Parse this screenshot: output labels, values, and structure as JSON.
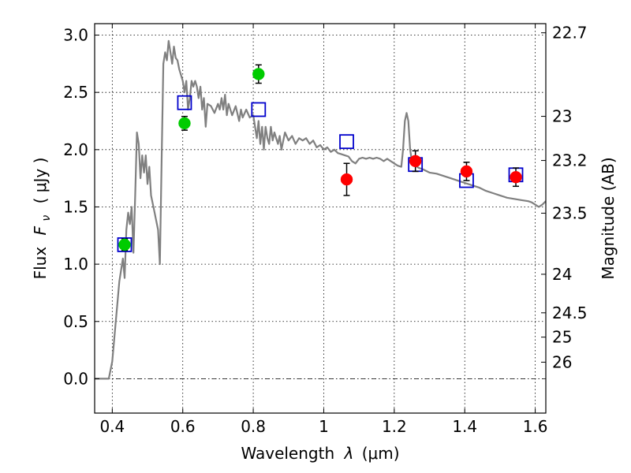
{
  "chart_data": {
    "type": "scatter",
    "xlabel_prefix": "Wavelength",
    "xlabel_symbol": "λ",
    "xlabel_unit": "(μm)",
    "ylabel_prefix": "Flux",
    "ylabel_symbol": "F",
    "ylabel_symbol_sub": "ν",
    "ylabel_unit": "( μJy )",
    "y2label": "Magnitude (AB)",
    "xlim": [
      0.35,
      1.63
    ],
    "ylim": [
      -0.3,
      3.1
    ],
    "x_ticks": [
      {
        "value": 0.4,
        "label": "0.4"
      },
      {
        "value": 0.6,
        "label": "0.6"
      },
      {
        "value": 0.8,
        "label": "0.8"
      },
      {
        "value": 1.0,
        "label": "1"
      },
      {
        "value": 1.2,
        "label": "1.2"
      },
      {
        "value": 1.4,
        "label": "1.4"
      },
      {
        "value": 1.6,
        "label": "1.6"
      }
    ],
    "y_ticks": [
      {
        "value": 0.0,
        "label": "0.0"
      },
      {
        "value": 0.5,
        "label": "0.5"
      },
      {
        "value": 1.0,
        "label": "1.0"
      },
      {
        "value": 1.5,
        "label": "1.5"
      },
      {
        "value": 2.0,
        "label": "2.0"
      },
      {
        "value": 2.5,
        "label": "2.5"
      },
      {
        "value": 3.0,
        "label": "3.0"
      }
    ],
    "y2_ticks": [
      {
        "magnitude": 22.7,
        "label": "22.7"
      },
      {
        "magnitude": 23.0,
        "label": "23"
      },
      {
        "magnitude": 23.2,
        "label": "23.2"
      },
      {
        "magnitude": 23.5,
        "label": "23.5"
      },
      {
        "magnitude": 24.0,
        "label": "24"
      },
      {
        "magnitude": 24.5,
        "label": "24.5"
      },
      {
        "magnitude": 25.0,
        "label": "25"
      },
      {
        "magnitude": 26.0,
        "label": "26"
      }
    ],
    "grid": true,
    "zero_line": true,
    "series": [
      {
        "kind": "line",
        "color": "#808080",
        "points": [
          [
            0.35,
            0.0
          ],
          [
            0.39,
            0.0
          ],
          [
            0.4,
            0.15
          ],
          [
            0.41,
            0.5
          ],
          [
            0.42,
            0.85
          ],
          [
            0.43,
            1.05
          ],
          [
            0.435,
            0.88
          ],
          [
            0.44,
            1.3
          ],
          [
            0.445,
            1.45
          ],
          [
            0.45,
            1.35
          ],
          [
            0.455,
            1.5
          ],
          [
            0.46,
            1.1
          ],
          [
            0.465,
            1.6
          ],
          [
            0.47,
            2.15
          ],
          [
            0.475,
            2.05
          ],
          [
            0.48,
            1.75
          ],
          [
            0.485,
            1.95
          ],
          [
            0.49,
            1.8
          ],
          [
            0.495,
            1.95
          ],
          [
            0.5,
            1.7
          ],
          [
            0.505,
            1.85
          ],
          [
            0.51,
            1.6
          ],
          [
            0.52,
            1.45
          ],
          [
            0.53,
            1.3
          ],
          [
            0.535,
            1.0
          ],
          [
            0.54,
            1.9
          ],
          [
            0.545,
            2.75
          ],
          [
            0.55,
            2.85
          ],
          [
            0.555,
            2.78
          ],
          [
            0.56,
            2.95
          ],
          [
            0.565,
            2.85
          ],
          [
            0.57,
            2.75
          ],
          [
            0.575,
            2.9
          ],
          [
            0.58,
            2.8
          ],
          [
            0.585,
            2.78
          ],
          [
            0.59,
            2.7
          ],
          [
            0.6,
            2.6
          ],
          [
            0.605,
            2.5
          ],
          [
            0.61,
            2.6
          ],
          [
            0.615,
            2.35
          ],
          [
            0.62,
            2.45
          ],
          [
            0.625,
            2.6
          ],
          [
            0.63,
            2.55
          ],
          [
            0.635,
            2.6
          ],
          [
            0.64,
            2.55
          ],
          [
            0.645,
            2.45
          ],
          [
            0.65,
            2.55
          ],
          [
            0.655,
            2.35
          ],
          [
            0.66,
            2.45
          ],
          [
            0.665,
            2.2
          ],
          [
            0.67,
            2.4
          ],
          [
            0.68,
            2.38
          ],
          [
            0.69,
            2.32
          ],
          [
            0.7,
            2.4
          ],
          [
            0.705,
            2.35
          ],
          [
            0.71,
            2.45
          ],
          [
            0.715,
            2.35
          ],
          [
            0.72,
            2.48
          ],
          [
            0.725,
            2.3
          ],
          [
            0.73,
            2.4
          ],
          [
            0.74,
            2.3
          ],
          [
            0.75,
            2.38
          ],
          [
            0.76,
            2.25
          ],
          [
            0.765,
            2.35
          ],
          [
            0.77,
            2.28
          ],
          [
            0.78,
            2.35
          ],
          [
            0.79,
            2.28
          ],
          [
            0.8,
            2.3
          ],
          [
            0.81,
            2.1
          ],
          [
            0.815,
            2.25
          ],
          [
            0.82,
            2.05
          ],
          [
            0.825,
            2.2
          ],
          [
            0.83,
            2.0
          ],
          [
            0.835,
            2.2
          ],
          [
            0.84,
            2.1
          ],
          [
            0.845,
            2.05
          ],
          [
            0.85,
            2.2
          ],
          [
            0.855,
            2.08
          ],
          [
            0.86,
            2.15
          ],
          [
            0.87,
            2.05
          ],
          [
            0.875,
            2.12
          ],
          [
            0.88,
            2.0
          ],
          [
            0.89,
            2.15
          ],
          [
            0.9,
            2.08
          ],
          [
            0.91,
            2.12
          ],
          [
            0.92,
            2.05
          ],
          [
            0.93,
            2.1
          ],
          [
            0.94,
            2.08
          ],
          [
            0.95,
            2.1
          ],
          [
            0.96,
            2.05
          ],
          [
            0.97,
            2.08
          ],
          [
            0.98,
            2.02
          ],
          [
            0.99,
            2.04
          ],
          [
            1.0,
            2.0
          ],
          [
            1.01,
            2.02
          ],
          [
            1.02,
            1.98
          ],
          [
            1.03,
            2.0
          ],
          [
            1.04,
            1.97
          ],
          [
            1.05,
            1.96
          ],
          [
            1.06,
            1.95
          ],
          [
            1.07,
            1.94
          ],
          [
            1.08,
            1.9
          ],
          [
            1.09,
            1.88
          ],
          [
            1.1,
            1.92
          ],
          [
            1.11,
            1.93
          ],
          [
            1.12,
            1.92
          ],
          [
            1.13,
            1.93
          ],
          [
            1.14,
            1.92
          ],
          [
            1.15,
            1.93
          ],
          [
            1.16,
            1.92
          ],
          [
            1.17,
            1.9
          ],
          [
            1.18,
            1.92
          ],
          [
            1.19,
            1.9
          ],
          [
            1.2,
            1.88
          ],
          [
            1.21,
            1.86
          ],
          [
            1.22,
            1.85
          ],
          [
            1.225,
            2.0
          ],
          [
            1.23,
            2.25
          ],
          [
            1.235,
            2.32
          ],
          [
            1.24,
            2.25
          ],
          [
            1.245,
            2.0
          ],
          [
            1.25,
            1.9
          ],
          [
            1.26,
            1.86
          ],
          [
            1.27,
            1.84
          ],
          [
            1.28,
            1.83
          ],
          [
            1.3,
            1.8
          ],
          [
            1.32,
            1.79
          ],
          [
            1.34,
            1.77
          ],
          [
            1.36,
            1.75
          ],
          [
            1.38,
            1.73
          ],
          [
            1.4,
            1.71
          ],
          [
            1.42,
            1.69
          ],
          [
            1.44,
            1.67
          ],
          [
            1.46,
            1.64
          ],
          [
            1.48,
            1.62
          ],
          [
            1.5,
            1.6
          ],
          [
            1.52,
            1.58
          ],
          [
            1.54,
            1.57
          ],
          [
            1.56,
            1.56
          ],
          [
            1.58,
            1.55
          ],
          [
            1.59,
            1.54
          ],
          [
            1.6,
            1.52
          ],
          [
            1.61,
            1.5
          ],
          [
            1.62,
            1.52
          ],
          [
            1.63,
            1.55
          ]
        ]
      },
      {
        "kind": "open-square",
        "color": "#0000cc",
        "points": [
          {
            "x": 0.435,
            "y": 1.17
          },
          {
            "x": 0.605,
            "y": 2.41
          },
          {
            "x": 0.815,
            "y": 2.35
          },
          {
            "x": 1.065,
            "y": 2.07
          },
          {
            "x": 1.26,
            "y": 1.87
          },
          {
            "x": 1.405,
            "y": 1.73
          },
          {
            "x": 1.545,
            "y": 1.78
          }
        ]
      },
      {
        "kind": "filled-circle",
        "color": "#00cc00",
        "points": [
          {
            "x": 0.435,
            "y": 1.17,
            "err": 0.05
          },
          {
            "x": 0.605,
            "y": 2.23,
            "err": 0.06
          },
          {
            "x": 0.815,
            "y": 2.66,
            "err": 0.08
          }
        ]
      },
      {
        "kind": "filled-circle",
        "color": "#ff0000",
        "points": [
          {
            "x": 1.065,
            "y": 1.74,
            "err": 0.14
          },
          {
            "x": 1.26,
            "y": 1.9,
            "err": 0.09
          },
          {
            "x": 1.405,
            "y": 1.81,
            "err": 0.08
          },
          {
            "x": 1.545,
            "y": 1.76,
            "err": 0.08
          }
        ]
      }
    ]
  }
}
